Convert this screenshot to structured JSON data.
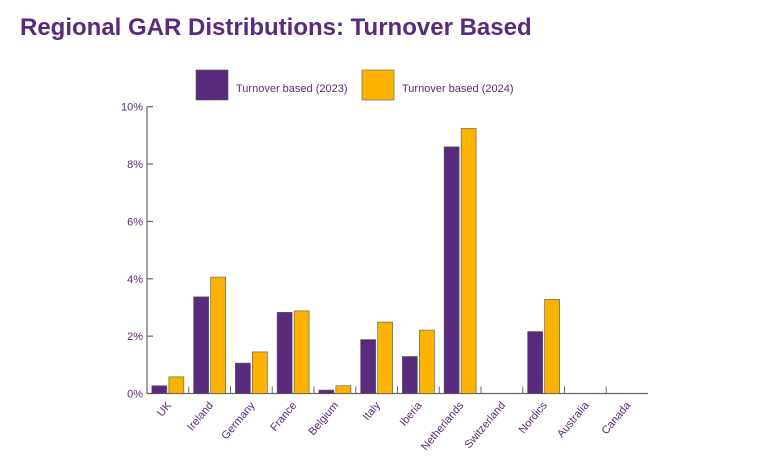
{
  "chart_data": {
    "type": "bar",
    "title": "Regional GAR Distributions: Turnover Based",
    "categories": [
      "UK",
      "Ireland",
      "Germany",
      "France",
      "Belgium",
      "Italy",
      "Iberia",
      "Netherlands",
      "Switzerland",
      "Nordics",
      "Australia",
      "Canada"
    ],
    "series": [
      {
        "name": "Turnover based (2023)",
        "color": "#5a2a7e",
        "values": [
          0.27,
          3.37,
          1.06,
          2.83,
          0.12,
          1.88,
          1.29,
          8.6,
          0,
          2.16,
          0,
          0
        ]
      },
      {
        "name": "Turnover based (2024)",
        "color": "#fbb300",
        "values": [
          0.58,
          4.06,
          1.45,
          2.88,
          0.27,
          2.49,
          2.21,
          9.24,
          0,
          3.28,
          0,
          0
        ]
      }
    ],
    "yticks": [
      "0%",
      "2%",
      "4%",
      "6%",
      "8%",
      "10%"
    ],
    "ylim": [
      0,
      10
    ],
    "xlabel": "",
    "ylabel": "",
    "grid": false,
    "legend": "top"
  }
}
